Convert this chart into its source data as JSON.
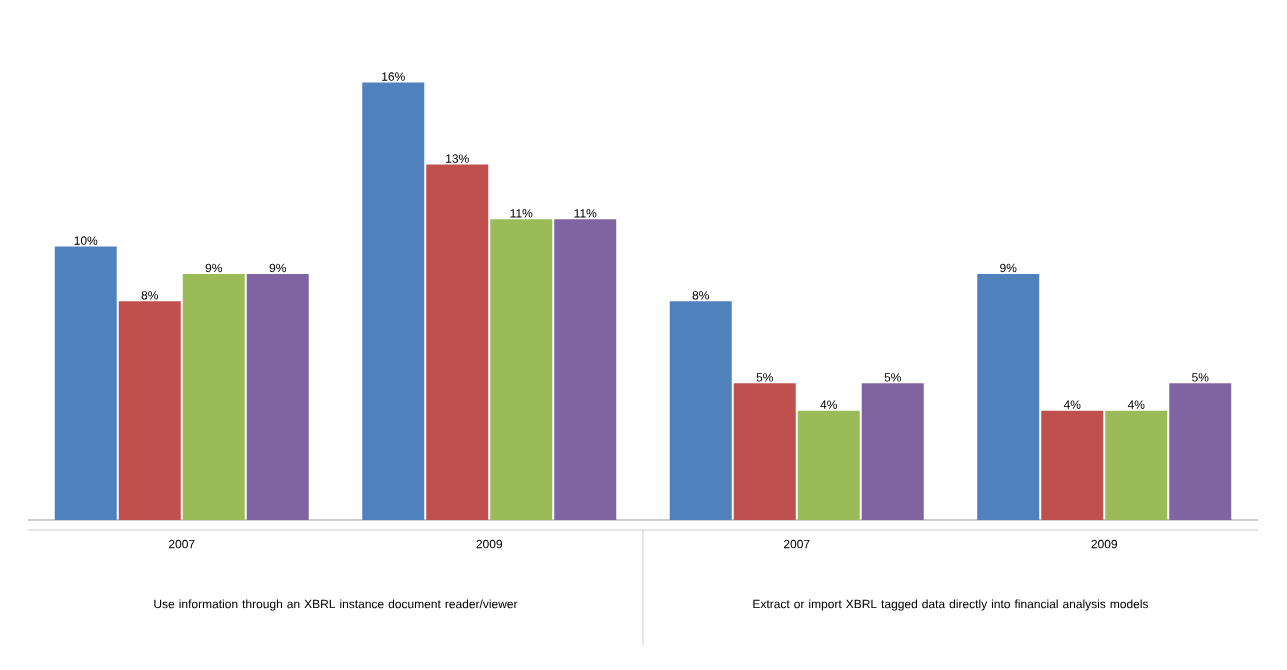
{
  "chart_data": {
    "type": "bar",
    "categories": [
      "2007",
      "2009",
      "2007",
      "2009"
    ],
    "series": [
      {
        "color": "#4f81bd",
        "values": [
          10,
          16,
          8,
          9
        ],
        "value_labels": [
          "10%",
          "16%",
          "8%",
          "9%"
        ]
      },
      {
        "color": "#c0504d",
        "values": [
          8,
          13,
          5,
          4
        ],
        "value_labels": [
          "8%",
          "13%",
          "5%",
          "4%"
        ]
      },
      {
        "color": "#9bbb59",
        "values": [
          9,
          11,
          4,
          4
        ],
        "value_labels": [
          "9%",
          "11%",
          "4%",
          "4%"
        ]
      },
      {
        "color": "#8064a2",
        "values": [
          9,
          11,
          5,
          5
        ],
        "value_labels": [
          "9%",
          "11%",
          "5%",
          "5%"
        ]
      }
    ],
    "annotations": [
      "Use information through an XBRL instance document reader/viewer",
      "Extract or import XBRL tagged data directly into financial analysis models"
    ],
    "stacked": false
  }
}
